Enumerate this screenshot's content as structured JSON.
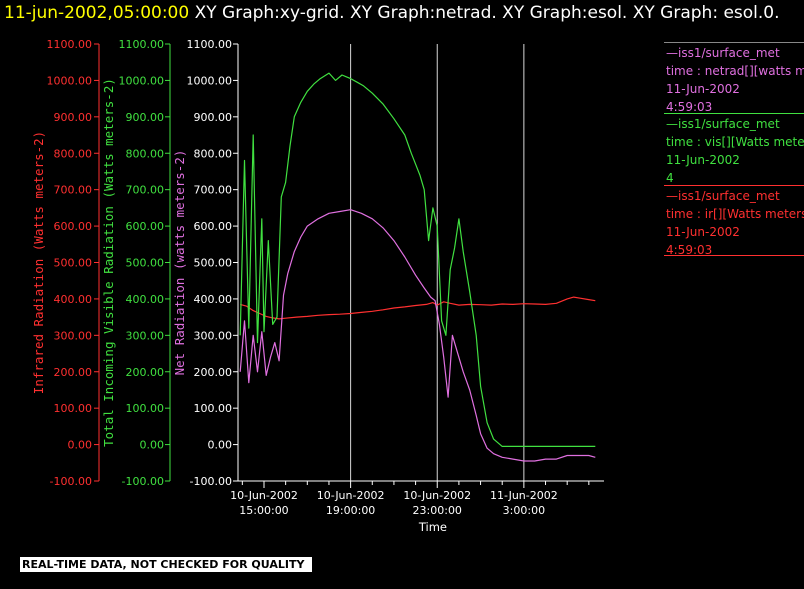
{
  "header": {
    "date_text": "11-jun-2002,05:00:00",
    "titles_text": " XY Graph:xy-grid.  XY Graph:netrad.  XY Graph:esol.  XY Graph: esol.0."
  },
  "legend": [
    {
      "source": "—iss1/surface_met",
      "variable": "time : netrad[][watts met",
      "date": "11-Jun-2002",
      "time": "4:59:03",
      "color": "#e070e0"
    },
    {
      "source": "—iss1/surface_met",
      "variable": "time : vis[][Watts meters",
      "date": "11-Jun-2002",
      "time": "4",
      "color": "#40e040"
    },
    {
      "source": "—iss1/surface_met",
      "variable": "time : ir[][Watts meters",
      "date": "11-Jun-2002",
      "time": "4:59:03",
      "color": "#ff3030"
    }
  ],
  "banner": "REAL-TIME DATA, NOT CHECKED FOR QUALITY",
  "chart_data": {
    "type": "line",
    "xlabel": "Time",
    "x_unit": "hours since 10-Jun-2002 00:00",
    "xlim": [
      13.8,
      30.7
    ],
    "x_ticks": [
      {
        "x": 15,
        "line1": "10-Jun-2002",
        "line2": "15:00:00"
      },
      {
        "x": 19,
        "line1": "10-Jun-2002",
        "line2": "19:00:00"
      },
      {
        "x": 23,
        "line1": "10-Jun-2002",
        "line2": "23:00:00"
      },
      {
        "x": 27,
        "line1": "11-Jun-2002",
        "line2": "3:00:00"
      }
    ],
    "y_axes": [
      {
        "label": "Infrared Radiation (Watts meters-2)",
        "color": "#ff3030",
        "ylim": [
          -100,
          1100
        ]
      },
      {
        "label": "Total Incoming Visible Radiation (Watts meters-2)",
        "color": "#40e040",
        "ylim": [
          -100,
          1100
        ]
      },
      {
        "label": "Net Radiation (watts meters-2)",
        "color": "#e070e0",
        "ylim": [
          -100,
          1100
        ]
      }
    ],
    "y_ticks": [
      -100,
      0,
      100,
      200,
      300,
      400,
      500,
      600,
      700,
      800,
      900,
      1000,
      1100
    ],
    "y_tick_labels": [
      "-100.00",
      "0.00",
      "100.00",
      "200.00",
      "300.00",
      "400.00",
      "500.00",
      "600.00",
      "700.00",
      "800.00",
      "900.00",
      "1000.00",
      "1100.00"
    ],
    "grid_x": [
      19,
      23,
      27
    ],
    "series": [
      {
        "name": "time : ir[][Watts meters",
        "color": "#ff3030",
        "x": [
          13.9,
          14.2,
          14.5,
          14.8,
          15.1,
          15.4,
          15.7,
          16.0,
          16.5,
          17,
          17.5,
          18,
          18.5,
          19,
          19.5,
          20,
          20.5,
          21,
          21.5,
          22,
          22.5,
          22.8,
          23,
          23.3,
          23.6,
          24,
          24.5,
          25,
          25.5,
          26,
          26.5,
          27,
          27.5,
          28,
          28.5,
          29,
          29.3,
          29.6,
          30,
          30.3
        ],
        "y": [
          385,
          380,
          368,
          360,
          352,
          348,
          345,
          347,
          350,
          352,
          355,
          357,
          358,
          360,
          363,
          366,
          370,
          375,
          378,
          382,
          385,
          390,
          383,
          392,
          388,
          383,
          385,
          384,
          383,
          386,
          385,
          387,
          386,
          385,
          388,
          400,
          405,
          402,
          398,
          395
        ]
      },
      {
        "name": "time : vis[][Watts meters",
        "color": "#40e040",
        "x": [
          13.9,
          14.1,
          14.3,
          14.5,
          14.7,
          14.9,
          15.0,
          15.2,
          15.4,
          15.6,
          15.8,
          16.0,
          16.2,
          16.4,
          16.7,
          17.0,
          17.3,
          17.6,
          18.0,
          18.3,
          18.6,
          18.8,
          19.0,
          19.3,
          19.6,
          20.0,
          20.5,
          21.0,
          21.5,
          21.8,
          22.0,
          22.2,
          22.4,
          22.6,
          22.8,
          23.0,
          23.2,
          23.4,
          23.6,
          23.8,
          24.0,
          24.2,
          24.5,
          24.8,
          25.0,
          25.3,
          25.6,
          26.0,
          26.5,
          27,
          28,
          29,
          30,
          30.3
        ],
        "y": [
          300,
          780,
          320,
          850,
          280,
          620,
          310,
          560,
          330,
          350,
          680,
          720,
          820,
          900,
          940,
          970,
          990,
          1005,
          1020,
          1000,
          1015,
          1010,
          1005,
          995,
          985,
          965,
          935,
          895,
          850,
          800,
          770,
          740,
          700,
          560,
          650,
          600,
          340,
          300,
          480,
          540,
          620,
          530,
          420,
          300,
          160,
          60,
          15,
          -5,
          -5,
          -5,
          -5,
          -5,
          -5,
          -5
        ]
      },
      {
        "name": "time : netrad[][watts met",
        "color": "#e070e0",
        "x": [
          13.9,
          14.1,
          14.3,
          14.5,
          14.7,
          14.9,
          15.1,
          15.3,
          15.5,
          15.7,
          15.9,
          16.1,
          16.4,
          16.7,
          17.0,
          17.5,
          18.0,
          18.5,
          19.0,
          19.5,
          20.0,
          20.5,
          21.0,
          21.5,
          22.0,
          22.4,
          22.7,
          22.9,
          23.1,
          23.3,
          23.5,
          23.7,
          23.9,
          24.2,
          24.5,
          24.8,
          25.0,
          25.3,
          25.6,
          26.0,
          26.5,
          27.0,
          27.5,
          28,
          28.5,
          29,
          29.5,
          30,
          30.3
        ],
        "y": [
          200,
          340,
          170,
          300,
          200,
          310,
          190,
          240,
          280,
          230,
          410,
          470,
          530,
          570,
          600,
          620,
          635,
          640,
          645,
          635,
          620,
          595,
          560,
          515,
          465,
          430,
          405,
          395,
          330,
          240,
          130,
          300,
          260,
          200,
          150,
          80,
          30,
          -10,
          -25,
          -35,
          -40,
          -45,
          -45,
          -40,
          -40,
          -30,
          -30,
          -30,
          -35
        ]
      }
    ]
  }
}
